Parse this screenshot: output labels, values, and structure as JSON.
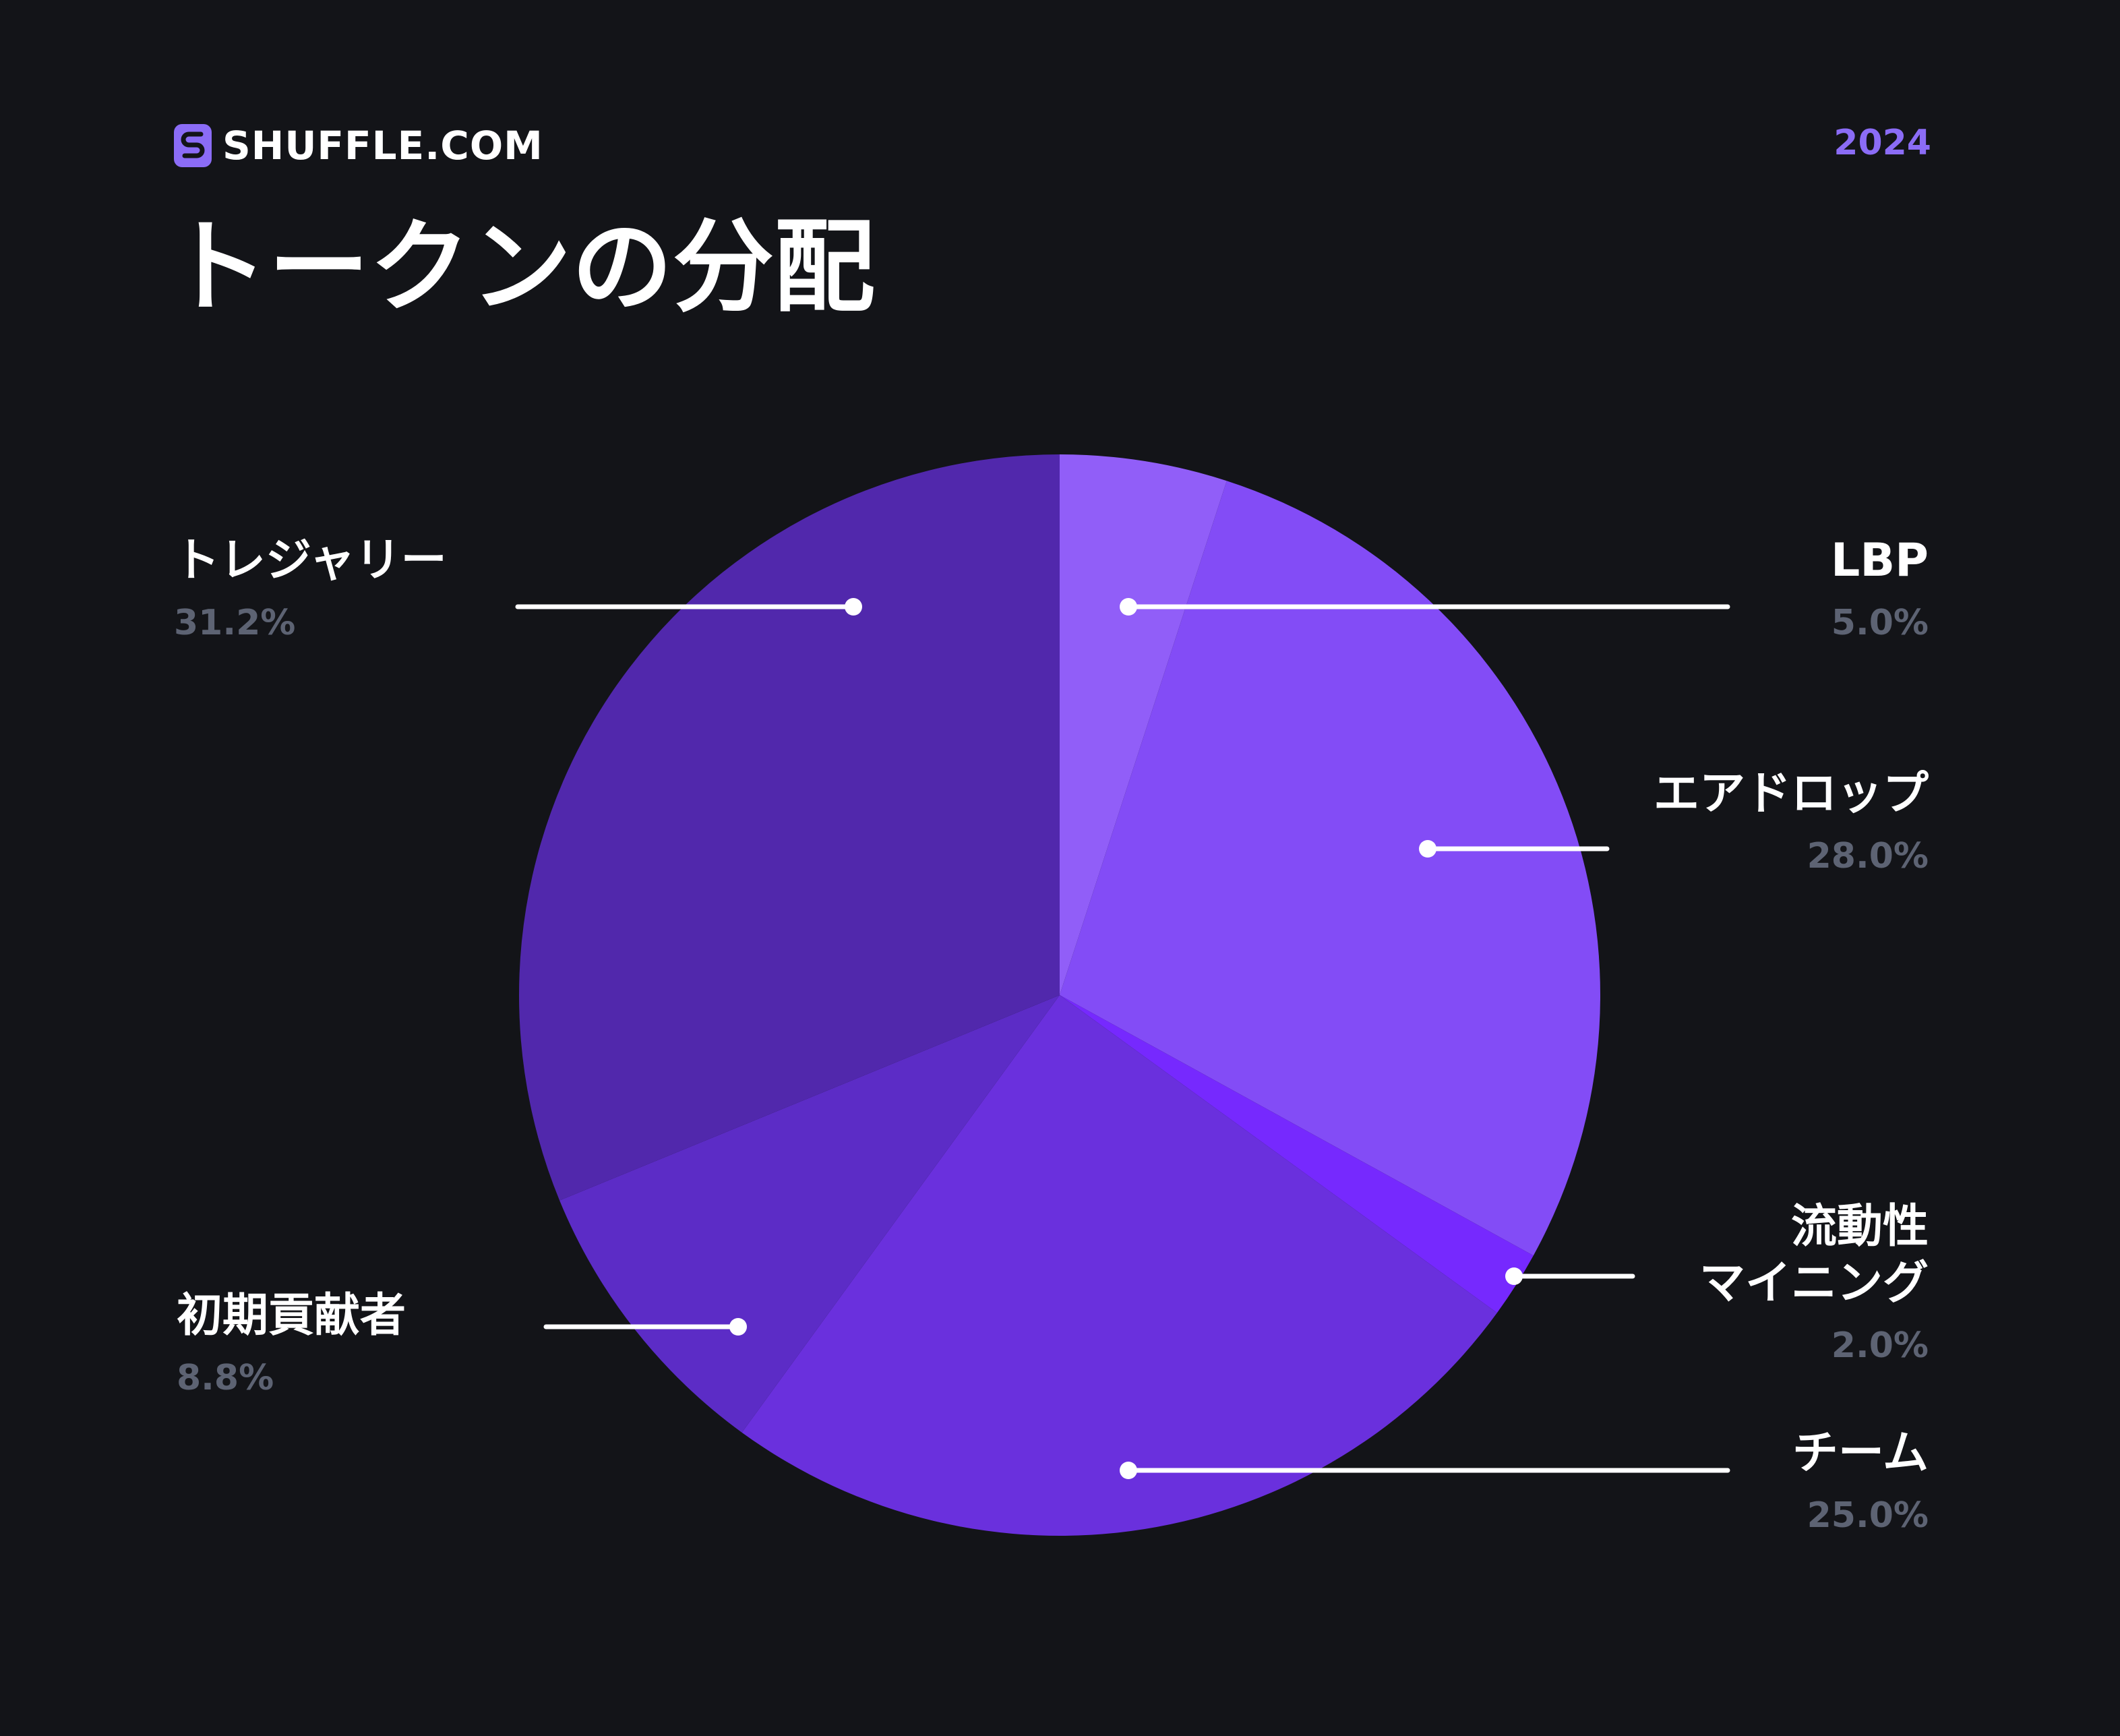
{
  "header": {
    "brand": "SHUFFLE.COM",
    "year": "2024",
    "title": "トークンの分配"
  },
  "colors": {
    "background": "#131418",
    "accent": "#8b6cf6",
    "label_text": "#ffffff",
    "percent_text": "#5d6373"
  },
  "icons": {
    "logo": "shuffle-logo-icon"
  },
  "chart_data": {
    "type": "pie",
    "title": "トークンの分配",
    "start_angle_deg": 0,
    "direction": "clockwise",
    "legend": "leader-lines",
    "slices": [
      {
        "label": "LBP",
        "value": 5.0,
        "percent_label": "5.0%",
        "color": "#915ef8"
      },
      {
        "label": "エアドロップ",
        "value": 28.0,
        "percent_label": "28.0%",
        "color": "#834cf6"
      },
      {
        "label": "流動性マイニング",
        "label_lines": [
          "流動性",
          "マイニング"
        ],
        "value": 2.0,
        "percent_label": "2.0%",
        "color": "#7629fe"
      },
      {
        "label": "チーム",
        "value": 25.0,
        "percent_label": "25.0%",
        "color": "#6a30dd"
      },
      {
        "label": "初期貢献者",
        "value": 8.8,
        "percent_label": "8.8%",
        "color": "#5c2cc6"
      },
      {
        "label": "トレジャリー",
        "value": 31.2,
        "percent_label": "31.2%",
        "color": "#5128ac"
      }
    ]
  }
}
